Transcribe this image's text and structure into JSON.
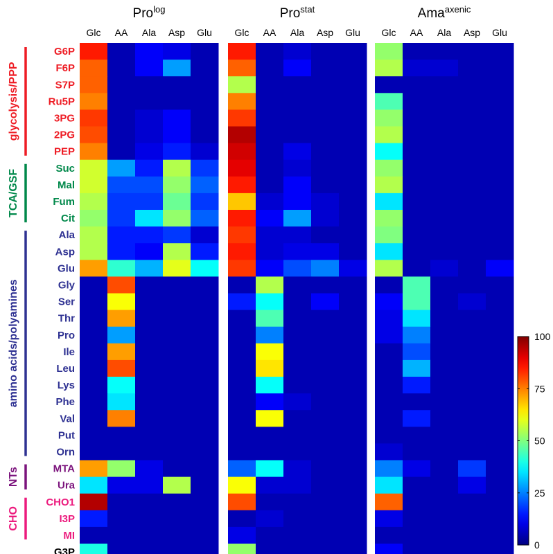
{
  "chart_data": {
    "type": "heatmap",
    "panels": [
      {
        "title": "Pro",
        "superscript": "log"
      },
      {
        "title": "Pro",
        "superscript": "stat"
      },
      {
        "title": "Ama",
        "superscript": "axenic"
      }
    ],
    "columns": [
      "Glc",
      "AA",
      "Ala",
      "Asp",
      "Glu"
    ],
    "rows": [
      "G6P",
      "F6P",
      "S7P",
      "Ru5P",
      "3PG",
      "2PG",
      "PEP",
      "Suc",
      "Mal",
      "Fum",
      "Cit",
      "Ala",
      "Asp",
      "Glu",
      "Gly",
      "Ser",
      "Thr",
      "Pro",
      "Ile",
      "Leu",
      "Lys",
      "Phe",
      "Val",
      "Put",
      "Orn",
      "MTA",
      "Ura",
      "CHO1",
      "I3P",
      "MI",
      "G3P"
    ],
    "groups": [
      {
        "label": "glycolysis/PPP",
        "color": "#ee1c24",
        "start": 0,
        "end": 6
      },
      {
        "label": "TCA/GSF",
        "color": "#00884a",
        "start": 7,
        "end": 10
      },
      {
        "label": "amino acids/polyamines",
        "color": "#2e3192",
        "start": 11,
        "end": 24
      },
      {
        "label": "NTs",
        "color": "#7b137c",
        "start": 25,
        "end": 26
      },
      {
        "label": "CHO",
        "color": "#ec1a7d",
        "start": 27,
        "end": 29
      },
      {
        "label": "",
        "color": "#000000",
        "start": 30,
        "end": 30
      }
    ],
    "colorbar": {
      "min": 0,
      "max": 100,
      "ticks": [
        0,
        25,
        50,
        75,
        100
      ],
      "colormap": "jet"
    },
    "values": [
      [
        [
          85,
          5,
          12,
          10,
          5
        ],
        [
          78,
          5,
          12,
          28,
          5
        ],
        [
          78,
          5,
          5,
          5,
          5
        ],
        [
          75,
          5,
          5,
          5,
          5
        ],
        [
          82,
          5,
          8,
          12,
          5
        ],
        [
          80,
          5,
          8,
          12,
          5
        ],
        [
          75,
          5,
          10,
          15,
          8
        ],
        [
          58,
          28,
          15,
          55,
          18
        ],
        [
          58,
          20,
          20,
          52,
          22
        ],
        [
          55,
          18,
          18,
          48,
          18
        ],
        [
          52,
          18,
          35,
          52,
          22
        ],
        [
          55,
          15,
          15,
          18,
          8
        ],
        [
          55,
          15,
          12,
          55,
          15
        ],
        [
          72,
          42,
          30,
          60,
          38
        ],
        [
          5,
          80,
          5,
          5,
          5
        ],
        [
          5,
          62,
          5,
          5,
          5
        ],
        [
          5,
          72,
          5,
          5,
          5
        ],
        [
          5,
          28,
          5,
          5,
          5
        ],
        [
          5,
          72,
          5,
          5,
          5
        ],
        [
          5,
          80,
          5,
          5,
          5
        ],
        [
          5,
          38,
          5,
          5,
          5
        ],
        [
          5,
          35,
          5,
          5,
          5
        ],
        [
          5,
          75,
          5,
          5,
          5
        ],
        [
          5,
          5,
          5,
          5,
          5
        ],
        [
          5,
          5,
          5,
          5,
          5
        ],
        [
          72,
          52,
          10,
          5,
          5
        ],
        [
          35,
          10,
          10,
          55,
          5
        ],
        [
          95,
          5,
          5,
          5,
          5
        ],
        [
          15,
          5,
          5,
          5,
          5
        ],
        [
          5,
          5,
          5,
          5,
          5
        ],
        [
          40,
          5,
          5,
          5,
          5
        ]
      ],
      [
        [
          85,
          5,
          8,
          5,
          5
        ],
        [
          78,
          5,
          12,
          5,
          5
        ],
        [
          55,
          5,
          5,
          5,
          5
        ],
        [
          75,
          5,
          5,
          5,
          5
        ],
        [
          82,
          5,
          5,
          5,
          5
        ],
        [
          95,
          5,
          5,
          5,
          5
        ],
        [
          92,
          5,
          10,
          5,
          5
        ],
        [
          90,
          5,
          8,
          5,
          5
        ],
        [
          85,
          5,
          12,
          5,
          5
        ],
        [
          68,
          8,
          12,
          8,
          5
        ],
        [
          85,
          12,
          28,
          8,
          5
        ],
        [
          82,
          8,
          8,
          5,
          5
        ],
        [
          85,
          8,
          10,
          10,
          5
        ],
        [
          82,
          12,
          20,
          25,
          10
        ],
        [
          5,
          55,
          5,
          5,
          5
        ],
        [
          15,
          38,
          5,
          12,
          5
        ],
        [
          5,
          45,
          5,
          5,
          5
        ],
        [
          5,
          25,
          5,
          5,
          5
        ],
        [
          5,
          62,
          5,
          5,
          5
        ],
        [
          5,
          65,
          5,
          5,
          5
        ],
        [
          5,
          38,
          5,
          5,
          5
        ],
        [
          5,
          12,
          8,
          5,
          5
        ],
        [
          5,
          62,
          5,
          5,
          5
        ],
        [
          5,
          5,
          5,
          5,
          5
        ],
        [
          5,
          5,
          5,
          5,
          5
        ],
        [
          22,
          38,
          8,
          5,
          5
        ],
        [
          62,
          8,
          8,
          5,
          5
        ],
        [
          80,
          5,
          5,
          5,
          5
        ],
        [
          5,
          8,
          5,
          5,
          5
        ],
        [
          10,
          5,
          5,
          5,
          5
        ],
        [
          52,
          5,
          5,
          5,
          5
        ]
      ],
      [
        [
          52,
          5,
          5,
          5,
          5
        ],
        [
          55,
          8,
          8,
          5,
          5
        ],
        [
          5,
          5,
          5,
          5,
          5
        ],
        [
          45,
          5,
          5,
          5,
          5
        ],
        [
          52,
          5,
          5,
          5,
          5
        ],
        [
          55,
          5,
          5,
          5,
          5
        ],
        [
          38,
          5,
          5,
          5,
          5
        ],
        [
          52,
          5,
          5,
          5,
          5
        ],
        [
          55,
          5,
          5,
          5,
          5
        ],
        [
          35,
          5,
          5,
          5,
          5
        ],
        [
          52,
          5,
          5,
          5,
          5
        ],
        [
          50,
          5,
          5,
          5,
          5
        ],
        [
          35,
          5,
          5,
          5,
          5
        ],
        [
          55,
          5,
          8,
          5,
          12
        ],
        [
          5,
          45,
          5,
          5,
          5
        ],
        [
          12,
          45,
          5,
          8,
          5
        ],
        [
          10,
          35,
          5,
          5,
          5
        ],
        [
          10,
          25,
          5,
          5,
          5
        ],
        [
          5,
          20,
          5,
          5,
          5
        ],
        [
          5,
          30,
          5,
          5,
          5
        ],
        [
          5,
          15,
          5,
          5,
          5
        ],
        [
          5,
          5,
          5,
          5,
          5
        ],
        [
          5,
          15,
          5,
          5,
          5
        ],
        [
          5,
          5,
          5,
          5,
          5
        ],
        [
          8,
          5,
          5,
          5,
          5
        ],
        [
          25,
          10,
          5,
          18,
          5
        ],
        [
          35,
          5,
          5,
          10,
          5
        ],
        [
          78,
          5,
          5,
          5,
          5
        ],
        [
          10,
          5,
          5,
          5,
          5
        ],
        [
          5,
          5,
          5,
          5,
          5
        ],
        [
          12,
          5,
          5,
          5,
          5
        ]
      ]
    ]
  }
}
